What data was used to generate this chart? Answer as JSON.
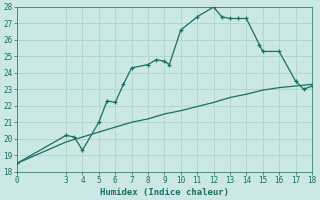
{
  "xlabel": "Humidex (Indice chaleur)",
  "bg_color": "#cce8e4",
  "grid_color": "#b0d8d2",
  "line_color": "#1a6e64",
  "xlim": [
    0,
    18
  ],
  "ylim": [
    18,
    28
  ],
  "xticks": [
    0,
    3,
    4,
    5,
    6,
    7,
    8,
    9,
    10,
    11,
    12,
    13,
    14,
    15,
    16,
    17,
    18
  ],
  "yticks": [
    18,
    19,
    20,
    21,
    22,
    23,
    24,
    25,
    26,
    27,
    28
  ],
  "curve1_x": [
    0,
    3,
    3.5,
    4,
    5,
    5.5,
    6,
    6.5,
    7,
    8,
    8.5,
    9,
    9.3,
    10,
    11,
    12,
    12.5,
    13,
    13.5,
    14,
    14.8,
    15,
    16,
    17,
    17.5,
    18
  ],
  "curve1_y": [
    18.5,
    20.2,
    20.1,
    19.3,
    21.0,
    22.3,
    22.2,
    23.3,
    24.3,
    24.5,
    24.8,
    24.7,
    24.5,
    26.6,
    27.4,
    28.0,
    27.4,
    27.3,
    27.3,
    27.3,
    25.7,
    25.3,
    25.3,
    23.5,
    23.0,
    23.2
  ],
  "curve2_x": [
    0,
    3,
    4,
    5,
    6,
    7,
    8,
    9,
    10,
    11,
    12,
    13,
    14,
    15,
    16,
    17,
    18
  ],
  "curve2_y": [
    18.5,
    19.8,
    20.1,
    20.4,
    20.7,
    21.0,
    21.2,
    21.5,
    21.7,
    21.95,
    22.2,
    22.5,
    22.7,
    22.95,
    23.1,
    23.2,
    23.3
  ]
}
